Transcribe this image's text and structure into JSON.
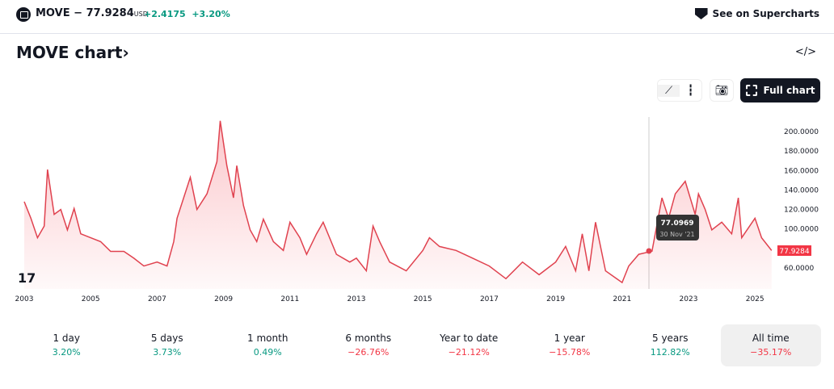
{
  "header": {
    "symbol": "MOVE",
    "dash": "−",
    "price": "77.9284",
    "currency": "USD",
    "change": "+2.4175",
    "change_pct": "+3.20%",
    "supercharts": "See on Supercharts"
  },
  "title": "MOVE chart›",
  "embed_icon": "</>",
  "toolbar": {
    "full_chart": "Full chart",
    "icons": [
      "area-chart-icon",
      "candles-icon",
      "camera-icon",
      "fullscreen-icon"
    ]
  },
  "tooltip": {
    "value": "77.0969",
    "date": "30 Nov '21"
  },
  "colors": {
    "line": "#e0424f",
    "up": "#089981",
    "down": "#f23645"
  },
  "chart_data": {
    "type": "area",
    "title": "MOVE chart",
    "ylim": [
      40,
      215
    ],
    "y_ticks": [
      "200.0000",
      "180.0000",
      "160.0000",
      "140.0000",
      "120.0000",
      "100.0000",
      "60.0000"
    ],
    "x_ticks": [
      "2003",
      "2005",
      "2007",
      "2009",
      "2011",
      "2013",
      "2015",
      "2017",
      "2019",
      "2021",
      "2023",
      "2025"
    ],
    "last_value_label": "77.9284",
    "series": [
      {
        "name": "MOVE",
        "x": [
          2003.0,
          2003.2,
          2003.4,
          2003.6,
          2003.7,
          2003.9,
          2004.1,
          2004.3,
          2004.5,
          2004.7,
          2005.0,
          2005.3,
          2005.6,
          2006.0,
          2006.3,
          2006.6,
          2007.0,
          2007.3,
          2007.5,
          2007.6,
          2008.0,
          2008.2,
          2008.5,
          2008.8,
          2008.9,
          2009.1,
          2009.3,
          2009.4,
          2009.6,
          2009.8,
          2010.0,
          2010.2,
          2010.5,
          2010.8,
          2011.0,
          2011.3,
          2011.5,
          2011.8,
          2012.0,
          2012.4,
          2012.8,
          2013.0,
          2013.3,
          2013.5,
          2013.7,
          2014.0,
          2014.5,
          2015.0,
          2015.2,
          2015.5,
          2016.0,
          2016.5,
          2017.0,
          2017.5,
          2018.0,
          2018.5,
          2019.0,
          2019.3,
          2019.6,
          2019.8,
          2020.0,
          2020.2,
          2020.5,
          2021.0,
          2021.2,
          2021.5,
          2021.9,
          2022.2,
          2022.4,
          2022.6,
          2022.9,
          2023.2,
          2023.3,
          2023.5,
          2023.7,
          2024.0,
          2024.3,
          2024.5,
          2024.6,
          2025.0,
          2025.2,
          2025.5
        ],
        "values": [
          128,
          111,
          91,
          103,
          161,
          115,
          120,
          99,
          121,
          95,
          91,
          87,
          77,
          77,
          70,
          62,
          66,
          62,
          87,
          111,
          153,
          120,
          136,
          169,
          211,
          165,
          132,
          165,
          124,
          99,
          87,
          110,
          87,
          78,
          107,
          91,
          74,
          95,
          107,
          74,
          66,
          70,
          57,
          103,
          87,
          66,
          57,
          78,
          91,
          82,
          78,
          70,
          62,
          49,
          66,
          53,
          66,
          82,
          57,
          95,
          57,
          107,
          57,
          45,
          62,
          74,
          77.1,
          132,
          111,
          136,
          149,
          115,
          136,
          120,
          99,
          107,
          95,
          132,
          91,
          111,
          91,
          77.9
        ]
      }
    ]
  },
  "performance": [
    {
      "label": "1 day",
      "value": "3.20%",
      "dir": "up"
    },
    {
      "label": "5 days",
      "value": "3.73%",
      "dir": "up"
    },
    {
      "label": "1 month",
      "value": "0.49%",
      "dir": "up"
    },
    {
      "label": "6 months",
      "value": "−26.76%",
      "dir": "dn"
    },
    {
      "label": "Year to date",
      "value": "−21.12%",
      "dir": "dn"
    },
    {
      "label": "1 year",
      "value": "−15.78%",
      "dir": "dn"
    },
    {
      "label": "5 years",
      "value": "112.82%",
      "dir": "up"
    },
    {
      "label": "All time",
      "value": "−35.17%",
      "dir": "dn"
    }
  ]
}
